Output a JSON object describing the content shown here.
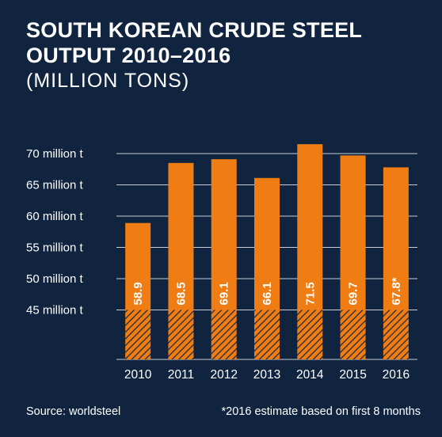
{
  "title_line1": "SOUTH KOREAN CRUDE STEEL",
  "title_line2": "OUTPUT 2010–2016",
  "subtitle": "(MILLION TONS)",
  "source": "Source: worldsteel",
  "footnote": "*2016 estimate based on first 8 months",
  "colors": {
    "background": "#102440",
    "bar": "#f07d14",
    "grid": "#c9ced6",
    "text": "#ffffff",
    "hatch_line": "#102440"
  },
  "chart_data": {
    "type": "bar",
    "categories": [
      "2010",
      "2011",
      "2012",
      "2013",
      "2014",
      "2015",
      "2016"
    ],
    "values": [
      58.9,
      68.5,
      69.1,
      66.1,
      71.5,
      69.7,
      67.8
    ],
    "value_labels": [
      "58.9",
      "68.5",
      "69.1",
      "66.1",
      "71.5",
      "69.7",
      "67.8*"
    ],
    "yticks": [
      45,
      50,
      55,
      60,
      65,
      70
    ],
    "ytick_labels": [
      "45 million t",
      "50 million t",
      "55 million t",
      "60 million t",
      "65 million t",
      "70 million t"
    ],
    "ylim": [
      37.5,
      72.5
    ],
    "truncated_below": 45,
    "grid": true,
    "title": "SOUTH KOREAN CRUDE STEEL OUTPUT 2010–2016",
    "subtitle": "(MILLION TONS)",
    "xlabel": "",
    "ylabel": ""
  }
}
